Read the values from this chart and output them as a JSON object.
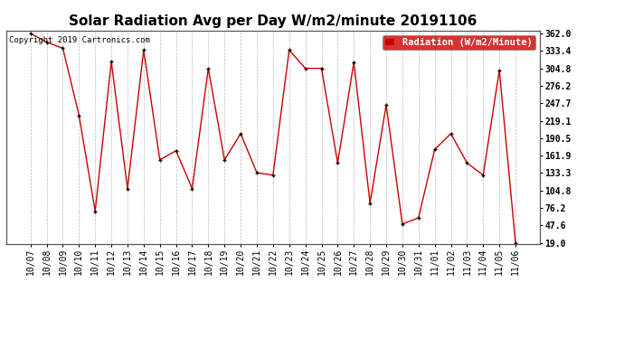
{
  "title": "Solar Radiation Avg per Day W/m2/minute 20191106",
  "copyright": "Copyright 2019 Cartronics.com",
  "legend_label": "Radiation (W/m2/Minute)",
  "dates": [
    "10/07",
    "10/08",
    "10/09",
    "10/10",
    "10/11",
    "10/12",
    "10/13",
    "10/14",
    "10/15",
    "10/16",
    "10/17",
    "10/18",
    "10/19",
    "10/20",
    "10/21",
    "10/22",
    "10/23",
    "10/24",
    "10/25",
    "10/26",
    "10/27",
    "10/28",
    "10/29",
    "10/30",
    "10/31",
    "11/01",
    "11/02",
    "11/03",
    "11/04",
    "11/05",
    "11/06"
  ],
  "values": [
    362,
    348,
    338,
    228,
    71,
    316,
    108,
    335,
    155,
    170,
    108,
    305,
    155,
    198,
    134,
    130,
    335,
    305,
    305,
    150,
    315,
    84,
    245,
    50,
    60,
    172,
    198,
    150,
    130,
    302,
    19
  ],
  "line_color": "#cc0000",
  "marker_color": "#000000",
  "bg_color": "#ffffff",
  "grid_color": "#bbbbbb",
  "ylim_min": 19.0,
  "ylim_max": 362.0,
  "yticks": [
    19.0,
    47.6,
    76.2,
    104.8,
    133.3,
    161.9,
    190.5,
    219.1,
    247.7,
    276.2,
    304.8,
    333.4,
    362.0
  ],
  "title_fontsize": 11,
  "copyright_fontsize": 6.5,
  "legend_fontsize": 7.5,
  "tick_fontsize": 7
}
